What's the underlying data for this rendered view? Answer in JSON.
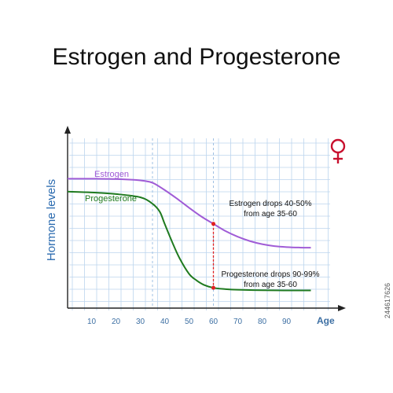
{
  "title": "Estrogen and Progesterone",
  "watermark": "244617626",
  "colors": {
    "estrogen": "#a05cd6",
    "progesterone": "#1f7a1f",
    "grid": "#bcd5ee",
    "axis": "#222222",
    "tick_label": "#3d6fa3",
    "ylabel": "#2a6aaf",
    "marker": "#e02020",
    "female_symbol": "#c8102e"
  },
  "icons": {
    "female_symbol": "female-symbol-icon"
  },
  "chart_data": {
    "type": "line",
    "title": "Estrogen and Progesterone",
    "xlabel": "Age",
    "ylabel": "Hormone levels",
    "xlim": [
      -0.5,
      108
    ],
    "ylim": [
      0,
      100
    ],
    "x_ticks": [
      10,
      20,
      30,
      40,
      50,
      60,
      70,
      80,
      90
    ],
    "grid": true,
    "series": [
      {
        "name": "Estrogen",
        "x": [
          0,
          10,
          20,
          30,
          34,
          36,
          40,
          45,
          50,
          55,
          60,
          65,
          70,
          75,
          80,
          85,
          90,
          95,
          100
        ],
        "y": [
          72,
          72,
          71.8,
          71,
          70,
          68.8,
          65,
          59.7,
          54,
          48.6,
          44,
          39.5,
          36,
          33.3,
          31.4,
          30.2,
          29.6,
          29.3,
          29.2
        ]
      },
      {
        "name": "Progesterone",
        "x": [
          0,
          10,
          20,
          30,
          35,
          38,
          40,
          43,
          46,
          50,
          53,
          56,
          60,
          65,
          70,
          80,
          90,
          100
        ],
        "y": [
          64,
          63.5,
          62.5,
          60.5,
          56.5,
          51.5,
          44,
          33,
          23,
          13,
          9,
          6.2,
          4.3,
          3.5,
          3.1,
          2.8,
          2.7,
          2.7
        ]
      }
    ],
    "annotations": [
      {
        "text": "Estrogen drops 40-50%",
        "text2": "from age 35-60"
      },
      {
        "text": "Progesterone drops 90-99%",
        "text2": "from age 35-60"
      }
    ],
    "reference_lines_x": [
      35,
      60
    ]
  }
}
